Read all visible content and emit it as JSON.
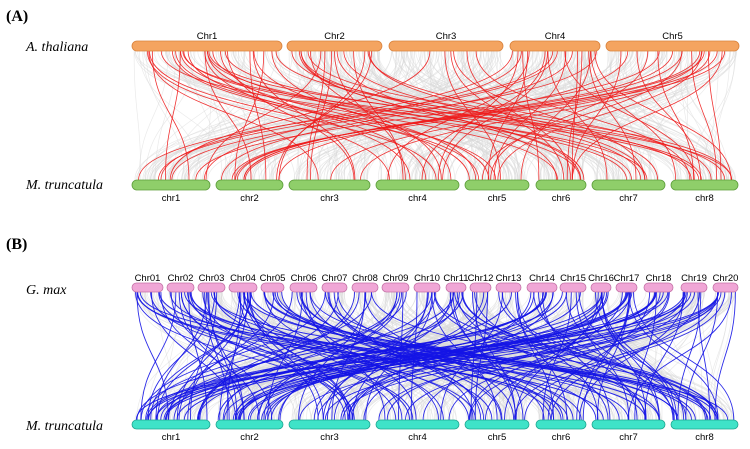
{
  "colors": {
    "background_link": "#d9d9d9",
    "panel_a_link": "#ee1c1c",
    "panel_b_link": "#1414e6",
    "a_top_bar": "#f4a460",
    "a_top_stroke": "#d9823c",
    "a_bottom_bar": "#8fce6a",
    "a_bottom_stroke": "#5c9e3a",
    "b_top_bar": "#f0a6d6",
    "b_top_stroke": "#c573a8",
    "b_bottom_bar": "#3fe3c8",
    "b_bottom_stroke": "#1fa690"
  },
  "panels": [
    {
      "id": "A",
      "label": "(A)",
      "top_species": "A. thaliana",
      "bottom_species": "M. truncatula",
      "top_chromosomes": [
        "Chr1",
        "Chr2",
        "Chr3",
        "Chr4",
        "Chr5"
      ],
      "bottom_chromosomes": [
        "chr1",
        "chr2",
        "chr3",
        "chr4",
        "chr5",
        "chr6",
        "chr7",
        "chr8"
      ]
    },
    {
      "id": "B",
      "label": "(B)",
      "top_species": "G. max",
      "bottom_species": "M. truncatula",
      "top_chromosomes": [
        "Chr01",
        "Chr02",
        "Chr03",
        "Chr04",
        "Chr05",
        "Chr06",
        "Chr07",
        "Chr08",
        "Chr09",
        "Chr10",
        "Chr11",
        "Chr12",
        "Chr13",
        "Chr14",
        "Chr15",
        "Chr16",
        "Chr17",
        "Chr18",
        "Chr19",
        "Chr20"
      ],
      "bottom_chromosomes": [
        "chr1",
        "chr2",
        "chr3",
        "chr4",
        "chr5",
        "chr6",
        "chr7",
        "chr8"
      ]
    }
  ]
}
